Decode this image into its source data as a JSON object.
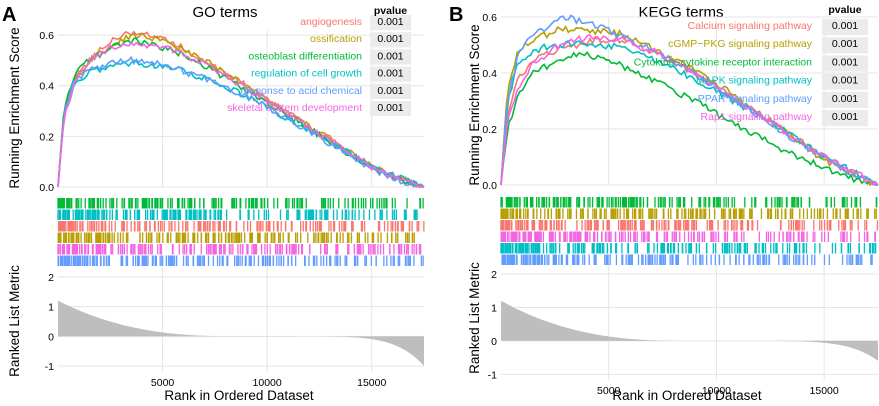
{
  "colors": {
    "series": [
      "#F8766D",
      "#B79F00",
      "#00BA38",
      "#00BFC4",
      "#619CFF",
      "#F564E3"
    ],
    "metric_fill": "#BEBEBE",
    "grid_major": "#E5E5E5",
    "pvalue_bg": "#EBEBEB"
  },
  "chart_data": [
    {
      "panel": "A",
      "type": "line",
      "title": "GO terms",
      "xlabel": "Rank in Ordered Dataset",
      "ylabel_top": "Running Enrichment Score",
      "ylabel_bottom": "Ranked List Metric",
      "x_range": [
        0,
        17500
      ],
      "x_ticks": [
        5000,
        10000,
        15000
      ],
      "es_ylim": [
        0,
        0.62
      ],
      "es_yticks": [
        0.0,
        0.2,
        0.4,
        0.6
      ],
      "es_ytick_labels": [
        "0.0",
        "0.2",
        "0.4",
        "0.6"
      ],
      "metric_ylim": [
        -1.2,
        2.3
      ],
      "metric_yticks": [
        -1,
        0,
        1,
        2
      ],
      "metric_ytick_labels": [
        "-1",
        "0",
        "1",
        "2"
      ],
      "metric_start": 1.2,
      "metric_end": -1.0,
      "pvalue_header": "pvalue",
      "legend_position": "top-right",
      "series": [
        {
          "name": "angiogenesis",
          "pvalue": "0.001",
          "x": [
            0,
            300,
            800,
            1500,
            2500,
            3500,
            4500,
            5500,
            7000,
            9000,
            11000,
            13000,
            15000,
            16500,
            17500
          ],
          "y": [
            0,
            0.3,
            0.43,
            0.5,
            0.58,
            0.61,
            0.6,
            0.57,
            0.5,
            0.4,
            0.29,
            0.19,
            0.08,
            0.03,
            0.0
          ]
        },
        {
          "name": "ossification",
          "pvalue": "0.001",
          "x": [
            0,
            300,
            800,
            1500,
            2500,
            3500,
            4500,
            5500,
            7000,
            9000,
            11000,
            13000,
            15000,
            16500,
            17500
          ],
          "y": [
            0,
            0.3,
            0.42,
            0.49,
            0.56,
            0.6,
            0.59,
            0.56,
            0.5,
            0.4,
            0.29,
            0.19,
            0.08,
            0.03,
            0.0
          ]
        },
        {
          "name": "osteoblast differentiation",
          "pvalue": "0.001",
          "x": [
            0,
            300,
            800,
            1500,
            2500,
            3500,
            4500,
            5500,
            7000,
            9000,
            11000,
            13000,
            15000,
            16500,
            17500
          ],
          "y": [
            0,
            0.32,
            0.45,
            0.5,
            0.55,
            0.58,
            0.56,
            0.54,
            0.48,
            0.38,
            0.28,
            0.18,
            0.07,
            0.02,
            0.0
          ]
        },
        {
          "name": "regulation of cell growth",
          "pvalue": "0.001",
          "x": [
            0,
            300,
            800,
            1500,
            2500,
            3500,
            4500,
            5500,
            7000,
            9000,
            11000,
            13000,
            15000,
            16500,
            17500
          ],
          "y": [
            0,
            0.28,
            0.4,
            0.45,
            0.48,
            0.49,
            0.48,
            0.47,
            0.43,
            0.36,
            0.27,
            0.18,
            0.08,
            0.03,
            0.0
          ]
        },
        {
          "name": "response to acid chemical",
          "pvalue": "0.001",
          "x": [
            0,
            300,
            800,
            1500,
            2500,
            3500,
            4500,
            5500,
            7000,
            9000,
            11000,
            13000,
            15000,
            16500,
            17500
          ],
          "y": [
            0,
            0.3,
            0.42,
            0.46,
            0.49,
            0.5,
            0.49,
            0.47,
            0.43,
            0.36,
            0.27,
            0.17,
            0.07,
            0.02,
            0.0
          ]
        },
        {
          "name": "skeletal system development",
          "pvalue": "0.001",
          "x": [
            0,
            300,
            800,
            1500,
            2500,
            3500,
            4500,
            5500,
            7000,
            9000,
            11000,
            13000,
            15000,
            16500,
            17500
          ],
          "y": [
            0,
            0.29,
            0.41,
            0.5,
            0.55,
            0.57,
            0.56,
            0.54,
            0.49,
            0.39,
            0.29,
            0.18,
            0.08,
            0.03,
            0.0
          ]
        }
      ]
    },
    {
      "panel": "B",
      "type": "line",
      "title": "KEGG terms",
      "xlabel": "Rank in Ordered Dataset",
      "ylabel_top": "Running Enrichment Score",
      "ylabel_bottom": "Ranked List Metric",
      "x_range": [
        0,
        17500
      ],
      "x_ticks": [
        5000,
        10000,
        15000
      ],
      "es_ylim": [
        0,
        0.6
      ],
      "es_yticks": [
        0.0,
        0.2,
        0.4,
        0.6
      ],
      "es_ytick_labels": [
        "0.0",
        "0.2",
        "0.4",
        "0.6"
      ],
      "metric_ylim": [
        -1.2,
        2.3
      ],
      "metric_yticks": [
        -1,
        0,
        1,
        2
      ],
      "metric_ytick_labels": [
        "-1",
        "0",
        "1",
        "2"
      ],
      "metric_start": 1.2,
      "metric_end": -0.6,
      "pvalue_header": "pvalue",
      "legend_position": "top-right",
      "series": [
        {
          "name": "Calcium signaling pathway",
          "pvalue": "0.001",
          "x": [
            0,
            300,
            800,
            1500,
            2500,
            3500,
            4500,
            5500,
            7000,
            9000,
            11000,
            13000,
            15000,
            16500,
            17500
          ],
          "y": [
            0,
            0.25,
            0.38,
            0.44,
            0.48,
            0.5,
            0.52,
            0.52,
            0.48,
            0.4,
            0.3,
            0.2,
            0.1,
            0.04,
            0.0
          ]
        },
        {
          "name": "cGMP−PKG signaling pathway",
          "pvalue": "0.001",
          "x": [
            0,
            300,
            800,
            1500,
            2500,
            3500,
            4500,
            5500,
            7000,
            9000,
            11000,
            13000,
            15000,
            16500,
            17500
          ],
          "y": [
            0,
            0.35,
            0.48,
            0.52,
            0.55,
            0.56,
            0.55,
            0.54,
            0.49,
            0.41,
            0.31,
            0.2,
            0.09,
            0.03,
            0.0
          ]
        },
        {
          "name": "Cytokine−cytokine receptor interaction",
          "pvalue": "0.001",
          "x": [
            0,
            300,
            800,
            1500,
            2500,
            3500,
            4500,
            5500,
            7000,
            9000,
            11000,
            13000,
            15000,
            16500,
            17500
          ],
          "y": [
            0,
            0.2,
            0.32,
            0.4,
            0.44,
            0.47,
            0.46,
            0.43,
            0.38,
            0.3,
            0.21,
            0.13,
            0.06,
            0.02,
            0.0
          ]
        },
        {
          "name": "MAPK signaling pathway",
          "pvalue": "0.001",
          "x": [
            0,
            300,
            800,
            1500,
            2500,
            3500,
            4500,
            5500,
            7000,
            9000,
            11000,
            13000,
            15000,
            16500,
            17500
          ],
          "y": [
            0,
            0.3,
            0.44,
            0.48,
            0.5,
            0.51,
            0.5,
            0.49,
            0.45,
            0.38,
            0.29,
            0.2,
            0.1,
            0.04,
            0.0
          ]
        },
        {
          "name": "PPAR signaling pathway",
          "pvalue": "0.001",
          "x": [
            0,
            300,
            800,
            1500,
            2500,
            3000,
            4000,
            5000,
            6500,
            8500,
            10500,
            12500,
            14500,
            16000,
            17500
          ],
          "y": [
            0,
            0.3,
            0.47,
            0.54,
            0.58,
            0.6,
            0.58,
            0.55,
            0.5,
            0.42,
            0.32,
            0.22,
            0.12,
            0.05,
            0.0
          ]
        },
        {
          "name": "Rap1 signaling pathway",
          "pvalue": "0.001",
          "x": [
            0,
            300,
            800,
            1500,
            2500,
            3500,
            4500,
            5500,
            7000,
            9000,
            11000,
            13000,
            15000,
            16500,
            17500
          ],
          "y": [
            0,
            0.22,
            0.35,
            0.43,
            0.49,
            0.52,
            0.53,
            0.52,
            0.48,
            0.4,
            0.3,
            0.2,
            0.1,
            0.04,
            0.0
          ]
        }
      ]
    }
  ]
}
